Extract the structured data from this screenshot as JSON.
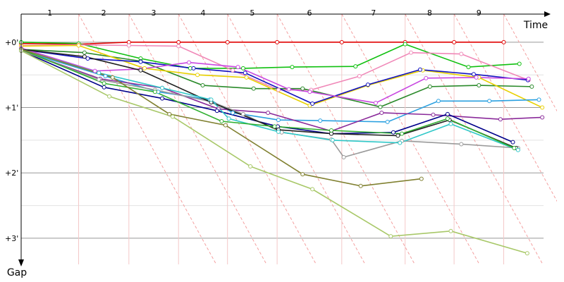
{
  "chart_data": {
    "type": "line",
    "x_label": "Time",
    "y_label": "Gap",
    "laps": [
      "1",
      "2",
      "3",
      "4",
      "5",
      "6",
      "7",
      "8",
      "9"
    ],
    "lap_lines": [
      0.88,
      1.65,
      2.41,
      3.16,
      3.92,
      4.91,
      5.88,
      6.63,
      7.39
    ],
    "xlim": [
      0,
      8
    ],
    "ylim": [
      -0.43,
      3.4
    ],
    "yticks": [
      {
        "value": 0,
        "label": "+0'"
      },
      {
        "value": 1,
        "label": "+1'"
      },
      {
        "value": 2,
        "label": "+2'"
      },
      {
        "value": 3,
        "label": "+3'"
      }
    ],
    "minor_yticks": [
      0.5,
      1.5,
      2.5
    ],
    "grid": true,
    "series": [
      {
        "color": "#e00000",
        "x": [
          0,
          0.88,
          1.65,
          2.41,
          3.16,
          3.92,
          4.91,
          5.88,
          6.63,
          7.39
        ],
        "values": [
          0.02,
          0.03,
          0,
          0,
          0,
          0,
          0,
          0,
          0,
          0
        ]
      },
      {
        "color": "#10c010",
        "x": [
          0,
          0.88,
          1.83,
          2.59,
          3.4,
          4.15,
          5.12,
          5.88,
          6.85,
          7.63
        ],
        "values": [
          0,
          0.02,
          0.25,
          0.4,
          0.4,
          0.38,
          0.37,
          0.03,
          0.38,
          0.33
        ]
      },
      {
        "color": "#f088b8",
        "x": [
          0,
          0.88,
          1.65,
          2.41,
          3.24,
          3.94,
          4.44,
          5.18,
          5.97,
          6.74,
          7.77
        ],
        "values": [
          0.05,
          0.04,
          0.05,
          0.06,
          0.43,
          0.73,
          0.73,
          0.52,
          0.16,
          0.18,
          0.58
        ]
      },
      {
        "color": "#2a8a2a",
        "x": [
          0,
          0.97,
          1.83,
          2.78,
          3.56,
          4.31,
          5.5,
          6.26,
          7.01,
          7.82
        ],
        "values": [
          0.11,
          0.16,
          0.29,
          0.66,
          0.71,
          0.71,
          0.99,
          0.68,
          0.66,
          0.68
        ]
      },
      {
        "color": "#e8d000",
        "x": [
          0,
          0.88,
          1.89,
          2.7,
          3.45,
          4.42,
          5.31,
          6.15,
          7.01,
          7.98
        ],
        "values": [
          0.06,
          0.05,
          0.4,
          0.5,
          0.54,
          0.97,
          0.66,
          0.43,
          0.54,
          1.0
        ]
      },
      {
        "color": "#1010c0",
        "x": [
          0,
          1.02,
          1.83,
          2.64,
          3.43,
          4.46,
          5.31,
          6.11,
          6.93,
          7.76
        ],
        "values": [
          0.11,
          0.25,
          0.3,
          0.4,
          0.47,
          0.94,
          0.65,
          0.42,
          0.49,
          0.58
        ]
      },
      {
        "color": "#c848e0",
        "x": [
          0,
          1.13,
          1.83,
          2.57,
          3.32,
          4.1,
          4.42,
          5.43,
          6.2,
          6.97,
          7.77
        ],
        "values": [
          0.09,
          0.44,
          0.41,
          0.31,
          0.38,
          0.72,
          0.76,
          0.93,
          0.55,
          0.54,
          0.56
        ]
      },
      {
        "color": "#2aa0e0",
        "x": [
          0,
          1.29,
          2.1,
          2.89,
          3.24,
          3.94,
          4.58,
          5.61,
          6.39,
          7.17,
          7.93
        ],
        "values": [
          0.13,
          0.52,
          0.76,
          0.88,
          1.08,
          1.19,
          1.2,
          1.22,
          0.9,
          0.9,
          0.88
        ]
      },
      {
        "color": "#8a2a9a",
        "x": [
          0,
          1.21,
          2.16,
          3.02,
          3.78,
          4.75,
          5.52,
          6.31,
          7.34,
          7.98
        ],
        "values": [
          0.13,
          0.56,
          0.7,
          1.02,
          1.08,
          1.36,
          1.08,
          1.11,
          1.18,
          1.15
        ]
      },
      {
        "color": "#00008a",
        "x": [
          0,
          1.27,
          2.16,
          3.0,
          3.93,
          4.75,
          5.7,
          6.53,
          7.53
        ],
        "values": [
          0.13,
          0.69,
          0.86,
          1.05,
          1.29,
          1.4,
          1.38,
          1.1,
          1.53
        ]
      },
      {
        "color": "#9a9a9a",
        "x": [
          0,
          1.19,
          2.05,
          2.91,
          3.4,
          3.99,
          4.75,
          4.94,
          5.83,
          6.74,
          7.61
        ],
        "values": [
          0.13,
          0.57,
          0.73,
          0.91,
          1.1,
          1.38,
          1.49,
          1.76,
          1.51,
          1.56,
          1.62
        ]
      },
      {
        "color": "#202020",
        "x": [
          0,
          0.97,
          1.83,
          2.91,
          3.94,
          4.75,
          5.77,
          6.56,
          7.58
        ],
        "values": [
          0.11,
          0.22,
          0.43,
          0.92,
          1.34,
          1.4,
          1.43,
          1.19,
          1.62
        ]
      },
      {
        "color": "#30c8c8",
        "x": [
          0,
          1.19,
          2.16,
          2.91,
          3.18,
          3.94,
          4.77,
          5.8,
          6.58,
          7.61
        ],
        "values": [
          0.11,
          0.47,
          0.7,
          0.88,
          1.17,
          1.37,
          1.5,
          1.54,
          1.25,
          1.65
        ]
      },
      {
        "color": "#30b030",
        "x": [
          0,
          1.27,
          2.05,
          3.07,
          3.88,
          4.75,
          5.83,
          6.53,
          7.55
        ],
        "values": [
          0.11,
          0.63,
          0.76,
          1.21,
          1.29,
          1.35,
          1.4,
          1.17,
          1.62
        ]
      },
      {
        "color": "#808030",
        "x": [
          0,
          1.4,
          2.27,
          3.13,
          4.31,
          5.2,
          6.13
        ],
        "values": [
          0.11,
          0.54,
          1.1,
          1.27,
          2.02,
          2.2,
          2.09
        ]
      },
      {
        "color": "#a8c868",
        "x": [
          0,
          1.35,
          2.32,
          3.51,
          4.46,
          5.66,
          6.58,
          7.75
        ],
        "values": [
          0.13,
          0.83,
          1.14,
          1.9,
          2.25,
          2.97,
          2.89,
          3.23
        ]
      }
    ]
  }
}
